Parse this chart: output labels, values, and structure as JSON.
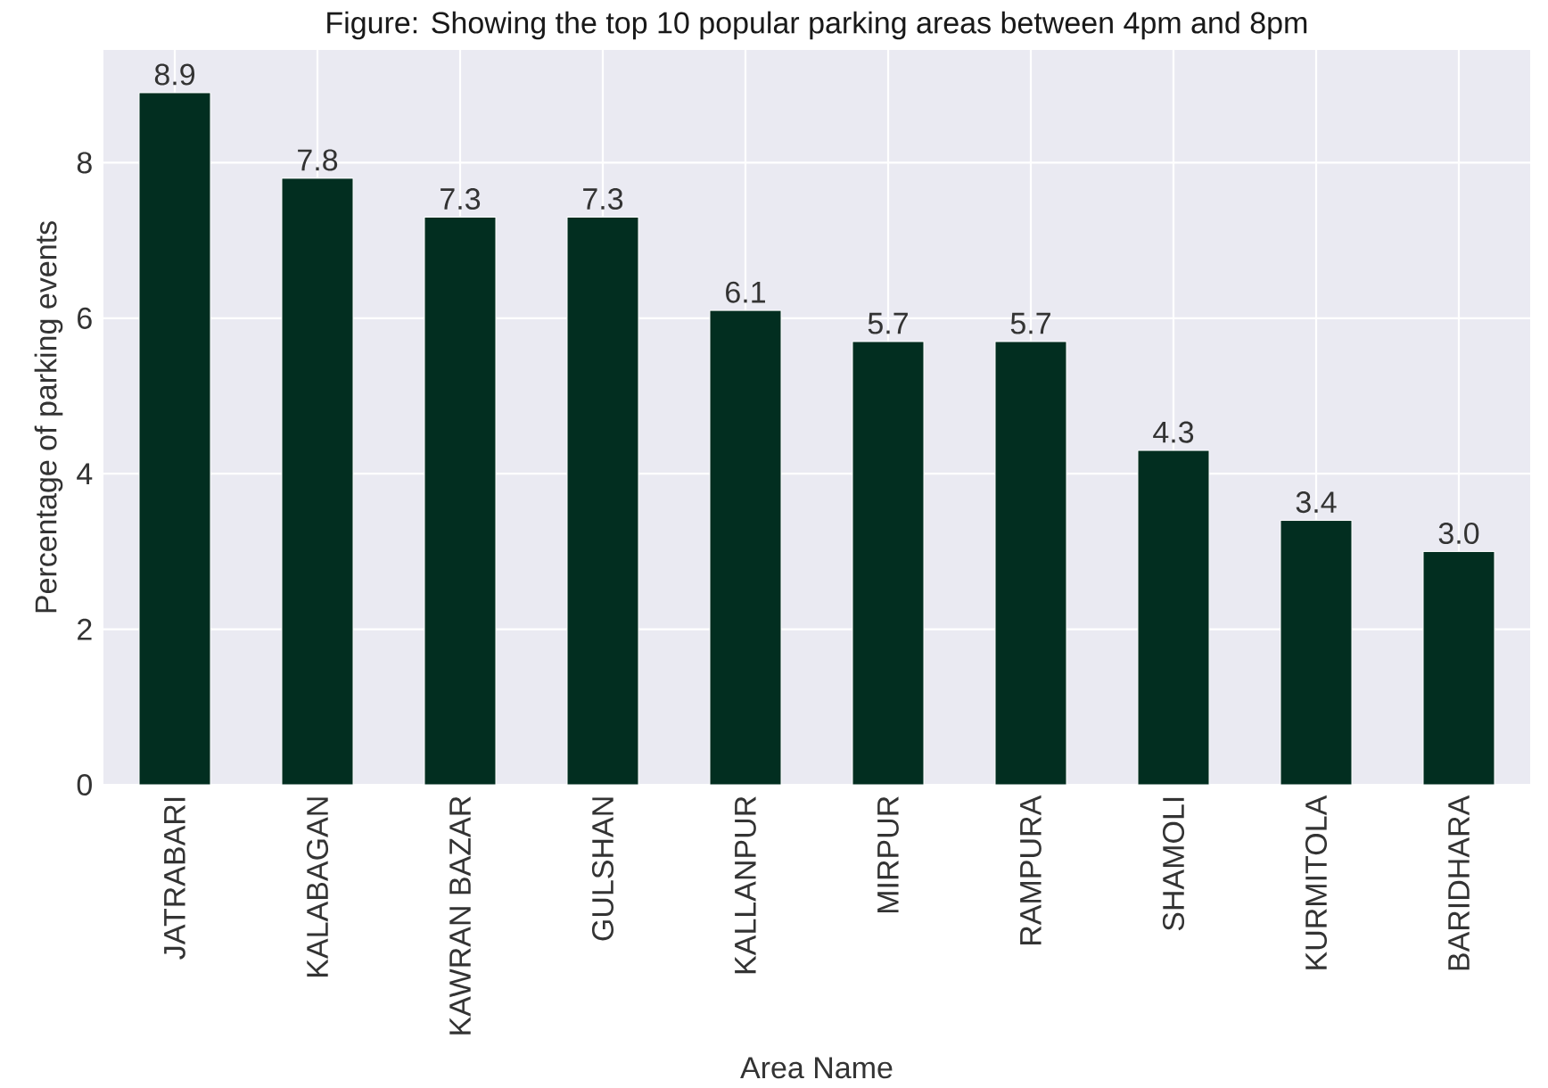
{
  "chart_data": {
    "type": "bar",
    "title": "Figure: Showing the top 10 popular parking areas between 4pm and 8pm",
    "xlabel": "Area Name",
    "ylabel": "Percentage of parking events",
    "categories": [
      "JATRABARI",
      "KALABAGAN",
      "KAWRAN BAZAR",
      "GULSHAN",
      "KALLANPUR",
      "MIRPUR",
      "RAMPURA",
      "SHAMOLI",
      "KURMITOLA",
      "BARIDHARA"
    ],
    "values": [
      8.9,
      7.8,
      7.3,
      7.3,
      6.1,
      5.7,
      5.7,
      4.3,
      3.4,
      3.0
    ],
    "value_labels": [
      "8.9",
      "7.8",
      "7.3",
      "7.3",
      "6.1",
      "5.7",
      "5.7",
      "4.3",
      "3.4",
      "3.0"
    ],
    "color": "#022e20",
    "ylim": [
      0,
      9.45
    ],
    "yticks": [
      0,
      2,
      4,
      6,
      8
    ],
    "grid": true
  }
}
